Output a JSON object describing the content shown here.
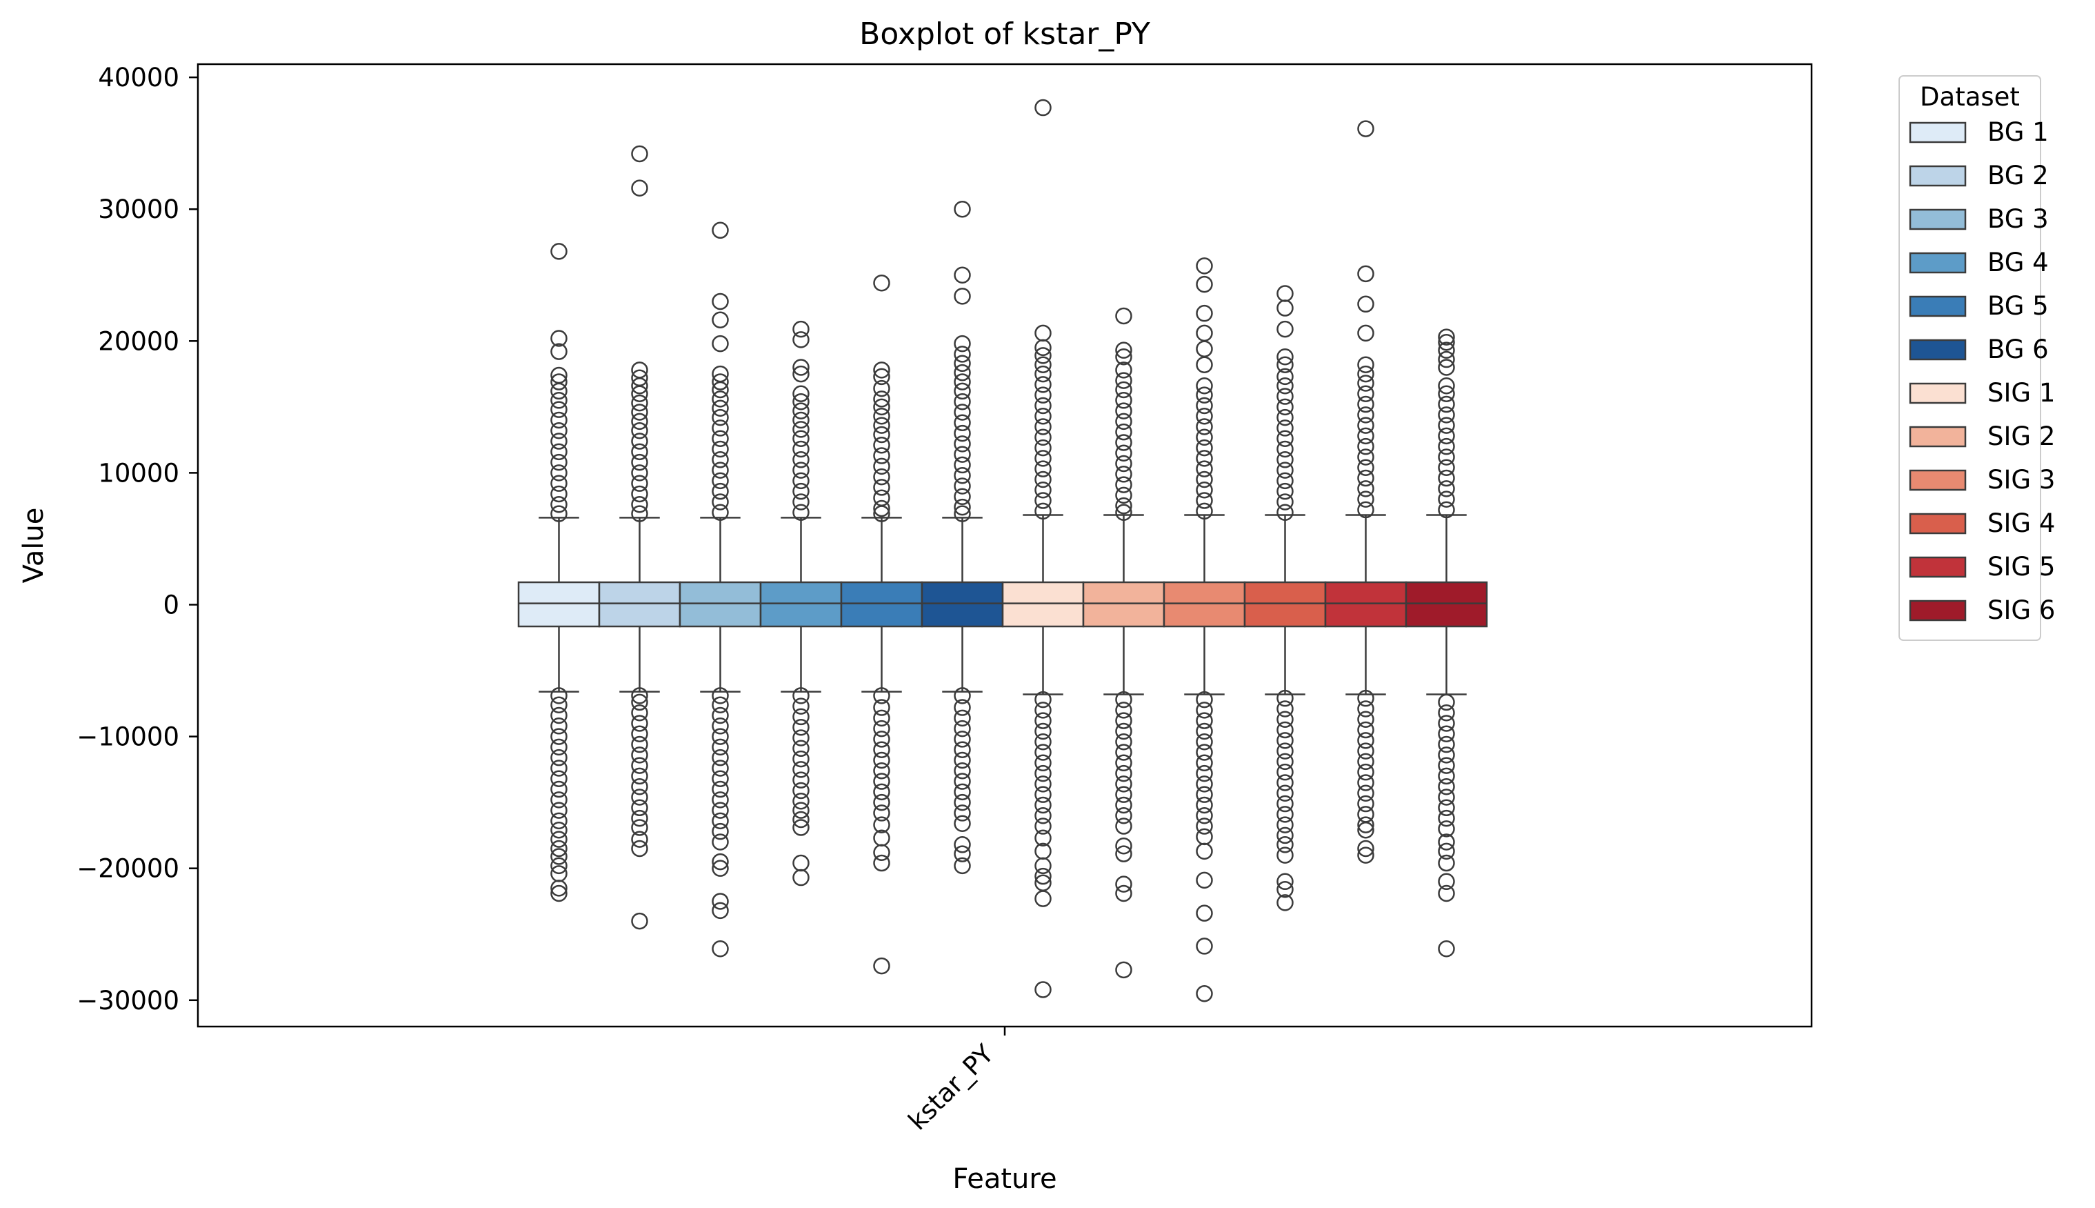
{
  "chart_data": {
    "type": "boxplot",
    "title": "Boxplot of kstar_PY",
    "xlabel": "Feature",
    "ylabel": "Value",
    "categories": [
      "kstar_PY"
    ],
    "ylim": [
      -32000,
      41000
    ],
    "yticks": [
      -30000,
      -20000,
      -10000,
      0,
      10000,
      20000,
      30000,
      40000
    ],
    "ytick_labels": [
      "−30000",
      "−20000",
      "−10000",
      "0",
      "10000",
      "20000",
      "30000",
      "40000"
    ],
    "grid": false,
    "legend": {
      "title": "Dataset",
      "placement": "outside-right"
    },
    "series": [
      {
        "name": "BG 1",
        "color": "#deebf7",
        "q1": -1650,
        "median": 100,
        "q3": 1700,
        "whisker_low": -6600,
        "whisker_high": 6600,
        "outliers_high": [
          26800,
          20200,
          19200,
          17400,
          16900,
          16200,
          15500,
          14800,
          14000,
          13200,
          12400,
          11600,
          10800,
          10000,
          9200,
          8400,
          7600,
          6900
        ],
        "outliers_low": [
          -21900,
          -21500,
          -20400,
          -19800,
          -19100,
          -18500,
          -17800,
          -17100,
          -16400,
          -15600,
          -14800,
          -14000,
          -13200,
          -12400,
          -11600,
          -10800,
          -10000,
          -9200,
          -8400,
          -7600,
          -6900
        ]
      },
      {
        "name": "BG 2",
        "color": "#bdd4e8",
        "q1": -1650,
        "median": 100,
        "q3": 1700,
        "whisker_low": -6600,
        "whisker_high": 6600,
        "outliers_high": [
          34200,
          31600,
          17800,
          17200,
          16600,
          16000,
          15300,
          14600,
          13900,
          13200,
          12400,
          11600,
          10800,
          10000,
          9200,
          8400,
          7600,
          6900
        ],
        "outliers_low": [
          -24000,
          -18500,
          -17800,
          -16900,
          -16200,
          -15400,
          -14600,
          -13800,
          -13000,
          -12200,
          -11400,
          -10600,
          -9800,
          -9000,
          -8200,
          -7400,
          -6900
        ]
      },
      {
        "name": "BG 3",
        "color": "#93bdd8",
        "q1": -1650,
        "median": 100,
        "q3": 1700,
        "whisker_low": -6600,
        "whisker_high": 6600,
        "outliers_high": [
          28400,
          23000,
          21600,
          19800,
          17500,
          16900,
          16300,
          15600,
          14900,
          14200,
          13400,
          12600,
          11800,
          11000,
          10200,
          9400,
          8600,
          7800,
          7000
        ],
        "outliers_low": [
          -26100,
          -23200,
          -22500,
          -20000,
          -19500,
          -18000,
          -17200,
          -16400,
          -15600,
          -14800,
          -14000,
          -13200,
          -12400,
          -11600,
          -10800,
          -10000,
          -9200,
          -8400,
          -7600,
          -6900
        ]
      },
      {
        "name": "BG 4",
        "color": "#5d9cc8",
        "q1": -1650,
        "median": 100,
        "q3": 1700,
        "whisker_low": -6600,
        "whisker_high": 6600,
        "outliers_high": [
          20900,
          20100,
          18000,
          17500,
          16000,
          15400,
          14700,
          14000,
          13300,
          12600,
          11800,
          11000,
          10200,
          9400,
          8600,
          7800,
          7000
        ],
        "outliers_low": [
          -20700,
          -19600,
          -16900,
          -16300,
          -15600,
          -14900,
          -14100,
          -13300,
          -12500,
          -11700,
          -10900,
          -10100,
          -9300,
          -8500,
          -7700,
          -6900
        ]
      },
      {
        "name": "BG 5",
        "color": "#3a7db7",
        "q1": -1650,
        "median": 100,
        "q3": 1700,
        "whisker_low": -6600,
        "whisker_high": 6600,
        "outliers_high": [
          24400,
          17800,
          17300,
          16400,
          15600,
          15000,
          14300,
          13600,
          12900,
          12100,
          11300,
          10500,
          9700,
          8900,
          8100,
          7300,
          6900
        ],
        "outliers_low": [
          -27400,
          -19600,
          -18800,
          -17700,
          -16700,
          -15800,
          -15000,
          -14200,
          -13400,
          -12600,
          -11800,
          -11000,
          -10200,
          -9400,
          -8600,
          -7800,
          -6900
        ]
      },
      {
        "name": "BG 6",
        "color": "#1e5594",
        "q1": -1650,
        "median": 100,
        "q3": 1700,
        "whisker_low": -6600,
        "whisker_high": 6600,
        "outliers_high": [
          30000,
          25000,
          23400,
          19800,
          19000,
          18300,
          17600,
          16900,
          16200,
          15400,
          14600,
          13800,
          13000,
          12200,
          11400,
          10600,
          9800,
          9000,
          8200,
          7400,
          6900
        ],
        "outliers_low": [
          -19800,
          -18900,
          -18200,
          -16600,
          -15800,
          -15000,
          -14200,
          -13400,
          -12600,
          -11800,
          -11000,
          -10200,
          -9400,
          -8600,
          -7800,
          -6900
        ]
      },
      {
        "name": "SIG 1",
        "color": "#fbe0d2",
        "q1": -1650,
        "median": 100,
        "q3": 1700,
        "whisker_low": -6800,
        "whisker_high": 6800,
        "outliers_high": [
          37700,
          20600,
          19500,
          18900,
          18200,
          17500,
          16700,
          15900,
          15100,
          14300,
          13500,
          12700,
          11900,
          11100,
          10300,
          9500,
          8700,
          7900,
          7100
        ],
        "outliers_low": [
          -29200,
          -22300,
          -21100,
          -20600,
          -19800,
          -18700,
          -17700,
          -16800,
          -16000,
          -15200,
          -14400,
          -13600,
          -12800,
          -12000,
          -11200,
          -10400,
          -9600,
          -8800,
          -8000,
          -7200
        ]
      },
      {
        "name": "SIG 2",
        "color": "#f2b39b",
        "q1": -1650,
        "median": 100,
        "q3": 1700,
        "whisker_low": -6800,
        "whisker_high": 6800,
        "outliers_high": [
          21900,
          19300,
          18800,
          17800,
          17000,
          16300,
          15500,
          14700,
          13900,
          13100,
          12300,
          11500,
          10700,
          9900,
          9100,
          8300,
          7500,
          7000
        ],
        "outliers_low": [
          -27700,
          -21900,
          -21200,
          -18900,
          -18300,
          -16800,
          -16000,
          -15200,
          -14400,
          -13600,
          -12800,
          -12000,
          -11200,
          -10400,
          -9600,
          -8800,
          -8000,
          -7200
        ]
      },
      {
        "name": "SIG 3",
        "color": "#e88a71",
        "q1": -1650,
        "median": 100,
        "q3": 1700,
        "whisker_low": -6800,
        "whisker_high": 6800,
        "outliers_high": [
          25700,
          24300,
          22100,
          20600,
          19400,
          18200,
          16600,
          15900,
          15100,
          14300,
          13500,
          12700,
          11900,
          11100,
          10300,
          9500,
          8700,
          7900,
          7100
        ],
        "outliers_low": [
          -29500,
          -25900,
          -23400,
          -20900,
          -18700,
          -17600,
          -16800,
          -16000,
          -15200,
          -14400,
          -13600,
          -12800,
          -12000,
          -11200,
          -10400,
          -9600,
          -8800,
          -8000,
          -7200
        ]
      },
      {
        "name": "SIG 4",
        "color": "#d95f4c",
        "q1": -1650,
        "median": 100,
        "q3": 1700,
        "whisker_low": -6800,
        "whisker_high": 6800,
        "outliers_high": [
          23600,
          22500,
          20900,
          18800,
          18200,
          17300,
          16600,
          15800,
          15000,
          14200,
          13400,
          12600,
          11800,
          11000,
          10200,
          9400,
          8600,
          7800,
          7000
        ],
        "outliers_low": [
          -22600,
          -21600,
          -21000,
          -19000,
          -18200,
          -17500,
          -16700,
          -15900,
          -15100,
          -14300,
          -13500,
          -12700,
          -11900,
          -11100,
          -10300,
          -9500,
          -8700,
          -7900,
          -7100
        ]
      },
      {
        "name": "SIG 5",
        "color": "#c1333a",
        "q1": -1650,
        "median": 100,
        "q3": 1700,
        "whisker_low": -6800,
        "whisker_high": 6800,
        "outliers_high": [
          36100,
          25100,
          22800,
          20600,
          18200,
          17500,
          16800,
          16000,
          15200,
          14400,
          13600,
          12800,
          12000,
          11200,
          10400,
          9600,
          8800,
          8000,
          7200
        ],
        "outliers_low": [
          -19000,
          -18500,
          -17100,
          -16700,
          -15900,
          -15100,
          -14300,
          -13500,
          -12700,
          -11900,
          -11100,
          -10300,
          -9500,
          -8700,
          -7900,
          -7100
        ]
      },
      {
        "name": "SIG 6",
        "color": "#9f1b2a",
        "q1": -1650,
        "median": 100,
        "q3": 1700,
        "whisker_low": -6800,
        "whisker_high": 6800,
        "outliers_high": [
          20300,
          19900,
          19300,
          18600,
          18000,
          16600,
          16000,
          15200,
          14400,
          13600,
          12800,
          12000,
          11200,
          10400,
          9600,
          8800,
          8000,
          7200
        ],
        "outliers_low": [
          -26100,
          -21900,
          -21000,
          -19600,
          -18700,
          -18000,
          -17000,
          -16200,
          -15400,
          -14600,
          -13800,
          -13000,
          -12200,
          -11400,
          -10600,
          -9800,
          -9000,
          -8200,
          -7400
        ]
      }
    ]
  }
}
